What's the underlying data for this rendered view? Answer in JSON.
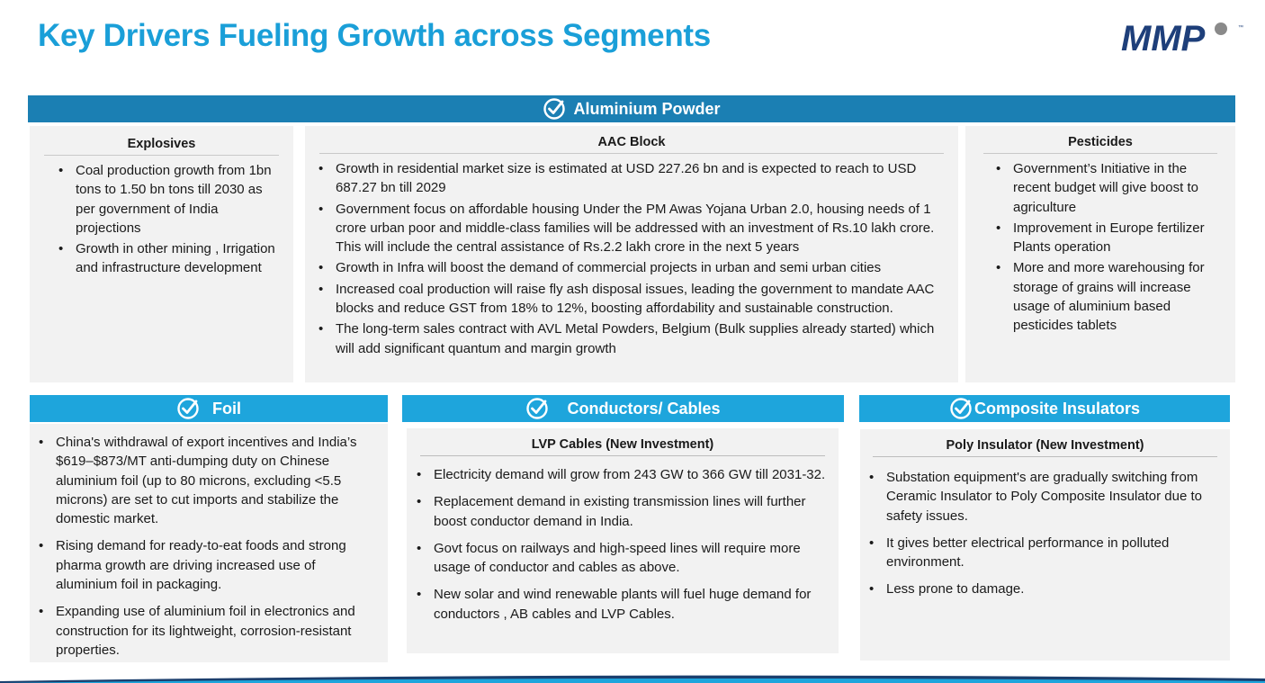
{
  "page": {
    "title": "Key Drivers Fueling Growth across Segments",
    "logo_text": "MMP"
  },
  "colors": {
    "title": "#1a9fd8",
    "banner_dark": "#1b7fb3",
    "banner_light": "#1ea5dc",
    "card_bg": "#f2f2f2"
  },
  "aluminium": {
    "banner": "Aluminium Powder",
    "explosives": {
      "heading": "Explosives",
      "items": [
        "Coal production growth from 1bn tons to 1.50 bn tons till 2030 as per government of India projections",
        "Growth in other mining , Irrigation and infrastructure development"
      ]
    },
    "aac": {
      "heading": "AAC Block",
      "items": [
        "Growth in residential market size is estimated at USD 227.26 bn and is expected to reach to USD 687.27 bn  till 2029",
        "Government focus on affordable housing Under the PM Awas Yojana Urban 2.0, housing needs of 1 crore urban poor and middle-class families will be addressed with an investment of Rs.10 lakh crore. This will include the central assistance of Rs.2.2 lakh crore in the next 5 years",
        "Growth in Infra will boost the demand of commercial projects in urban and semi urban cities",
        "Increased coal production will raise fly ash disposal issues, leading the government to mandate AAC blocks and reduce GST from 18% to 12%, boosting affordability and sustainable construction.",
        "The long-term sales contract with AVL Metal Powders, Belgium (Bulk supplies already started) which will add significant quantum and margin growth"
      ]
    },
    "pesticides": {
      "heading": "Pesticides",
      "items": [
        "Government’s Initiative in the recent budget will give boost to agriculture",
        "Improvement in Europe fertilizer Plants  operation",
        "More and more warehousing for storage of grains will increase usage of aluminium based pesticides tablets"
      ]
    }
  },
  "foil": {
    "banner": "Foil",
    "items": [
      "China's withdrawal of export incentives and India’s $619–$873/MT anti-dumping duty on Chinese aluminium foil (up to 80 microns, excluding <5.5 microns) are set to cut imports and stabilize the domestic market.",
      "Rising demand for ready-to-eat foods and strong pharma growth are driving increased use of aluminium foil in packaging.",
      "Expanding use of aluminium foil in electronics and construction for its lightweight, corrosion-resistant properties."
    ]
  },
  "conductors": {
    "banner": "Conductors/ Cables",
    "heading": "LVP Cables (New Investment)",
    "items": [
      "Electricity demand will grow from 243 GW to 366 GW till 2031-32.",
      "Replacement demand in existing transmission lines will further boost conductor demand in India.",
      "Govt focus on railways and high-speed lines will require more usage of conductor and cables as above.",
      "New solar and wind renewable plants will fuel huge demand for conductors , AB cables and LVP Cables."
    ]
  },
  "insulators": {
    "banner": "Composite Insulators",
    "heading": "Poly Insulator (New Investment)",
    "items": [
      "Substation equipment's are gradually switching from Ceramic Insulator to Poly Composite Insulator due to safety issues.",
      "It gives better electrical performance in polluted environment.",
      "Less prone to damage."
    ]
  }
}
